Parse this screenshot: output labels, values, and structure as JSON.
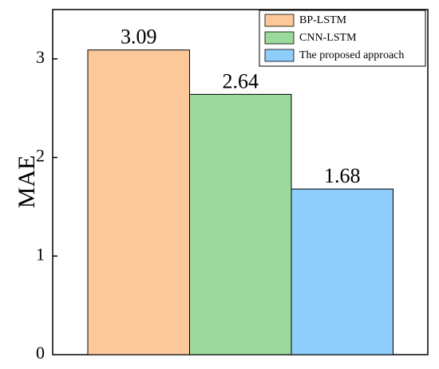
{
  "chart_data": {
    "type": "bar",
    "categories": [
      "BP-LSTM",
      "CNN-LSTM",
      "The proposed approach"
    ],
    "values": [
      3.09,
      2.64,
      1.68
    ],
    "value_labels": [
      "3.09",
      "2.64",
      "1.68"
    ],
    "series_colors": [
      "#fcc89a",
      "#9cd99c",
      "#8ecdfc"
    ],
    "title": "",
    "xlabel": "",
    "ylabel": "MAE",
    "ylim": [
      0,
      3.5
    ],
    "yticks": [
      0,
      1,
      2,
      3
    ],
    "ytick_labels": [
      "0",
      "1",
      "2",
      "3"
    ],
    "grid": false,
    "legend_position": "top-right",
    "legend": [
      {
        "label": "BP-LSTM",
        "color": "#fcc89a"
      },
      {
        "label": "CNN-LSTM",
        "color": "#9cd99c"
      },
      {
        "label": "The proposed approach",
        "color": "#8ecdfc"
      }
    ]
  }
}
